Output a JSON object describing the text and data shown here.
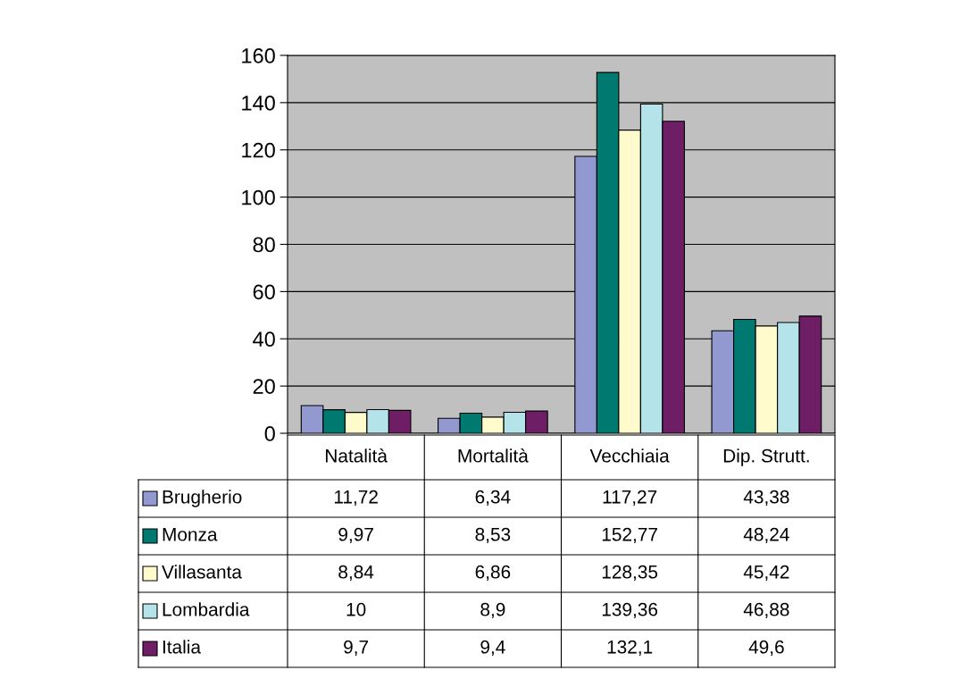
{
  "chart_data": {
    "type": "bar",
    "categories": [
      "Natalità",
      "Mortalità",
      "Vecchiaia",
      "Dip. Strutt."
    ],
    "series": [
      {
        "name": "Brugherio",
        "color": "#9199d0",
        "values": [
          11.72,
          6.34,
          117.27,
          43.38
        ],
        "value_labels": [
          "11,72",
          "6,34",
          "117,27",
          "43,38"
        ]
      },
      {
        "name": "Monza",
        "color": "#007a70",
        "values": [
          9.97,
          8.53,
          152.77,
          48.24
        ],
        "value_labels": [
          "9,97",
          "8,53",
          "152,77",
          "48,24"
        ]
      },
      {
        "name": "Villasanta",
        "color": "#fffbcc",
        "values": [
          8.84,
          6.86,
          128.35,
          45.42
        ],
        "value_labels": [
          "8,84",
          "6,86",
          "128,35",
          "45,42"
        ]
      },
      {
        "name": "Lombardia",
        "color": "#b5e3ea",
        "values": [
          10,
          8.9,
          139.36,
          46.88
        ],
        "value_labels": [
          "10",
          "8,9",
          "139,36",
          "46,88"
        ]
      },
      {
        "name": "Italia",
        "color": "#6e1e64",
        "values": [
          9.7,
          9.4,
          132.1,
          49.6
        ],
        "value_labels": [
          "9,7",
          "9,4",
          "132,1",
          "49,6"
        ]
      }
    ],
    "ylim": [
      0,
      160
    ],
    "yticks": [
      0,
      20,
      40,
      60,
      80,
      100,
      120,
      140,
      160
    ],
    "grid": "y",
    "legend": "bottom"
  }
}
